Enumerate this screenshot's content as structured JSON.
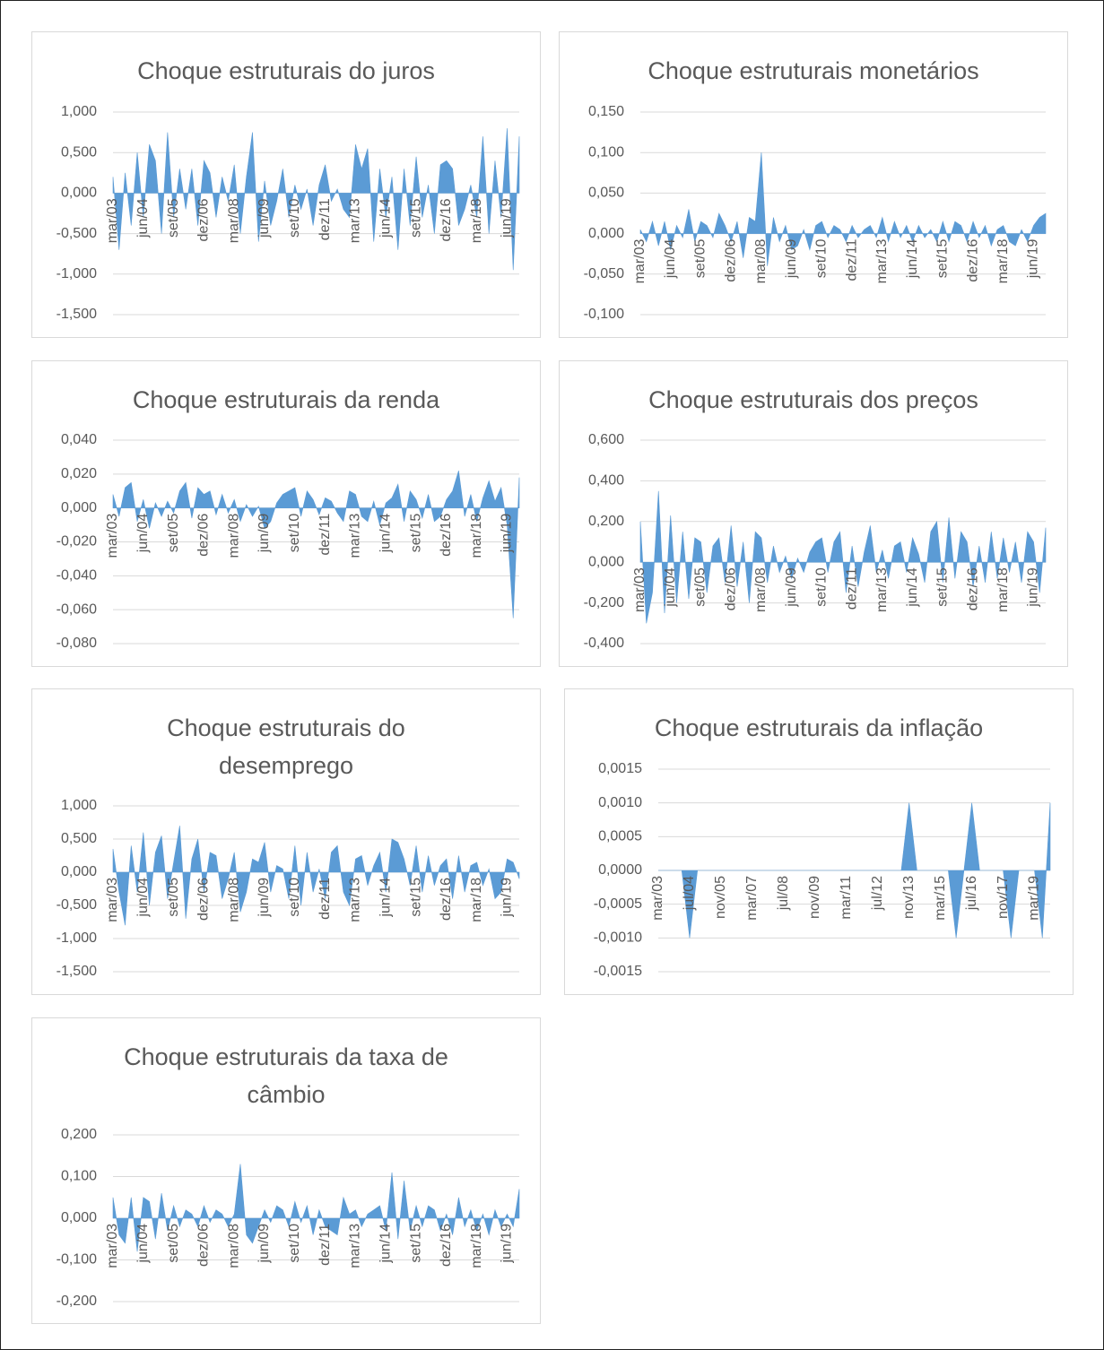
{
  "chart_data": [
    {
      "type": "area",
      "title": "Choque estruturais do juros",
      "color": "#5b9bd5",
      "grid": true,
      "categories": [
        "mar/03",
        null,
        null,
        null,
        null,
        "jun/04",
        null,
        null,
        null,
        null,
        "set/05",
        null,
        null,
        null,
        null,
        "dez/06",
        null,
        null,
        null,
        null,
        "mar/08",
        null,
        null,
        null,
        null,
        "jun/09",
        null,
        null,
        null,
        null,
        "set/10",
        null,
        null,
        null,
        null,
        "dez/11",
        null,
        null,
        null,
        null,
        "mar/13",
        null,
        null,
        null,
        null,
        "jun/14",
        null,
        null,
        null,
        null,
        "set/15",
        null,
        null,
        null,
        null,
        "dez/16",
        null,
        null,
        null,
        null,
        "mar/18",
        null,
        null,
        null,
        null,
        "jun/19",
        null,
        null
      ],
      "values": [
        0.2,
        -0.7,
        0.25,
        -0.4,
        0.5,
        -0.3,
        0.6,
        0.4,
        -0.5,
        0.75,
        -0.3,
        0.3,
        -0.2,
        0.3,
        -0.4,
        0.4,
        0.25,
        -0.3,
        0.2,
        -0.1,
        0.35,
        -0.5,
        0.2,
        0.75,
        -0.6,
        0.15,
        -0.4,
        -0.1,
        0.3,
        -0.3,
        0.1,
        -0.2,
        0.05,
        -0.4,
        0.1,
        0.35,
        -0.1,
        0.05,
        -0.2,
        -0.3,
        0.6,
        0.3,
        0.55,
        -0.6,
        0.3,
        -0.3,
        0.2,
        -0.7,
        0.3,
        -0.4,
        0.45,
        -0.3,
        0.1,
        -0.5,
        0.35,
        0.4,
        0.3,
        -0.4,
        -0.2,
        0.1,
        -0.3,
        0.7,
        -0.5,
        0.4,
        -0.3,
        0.8,
        -0.95,
        0.7
      ],
      "ylim": [
        -1.5,
        1
      ],
      "yticks": [
        {
          "value": -1.5,
          "label": "-1,500"
        },
        {
          "value": -1,
          "label": "-1,000"
        },
        {
          "value": -0.5,
          "label": "-0,500"
        },
        {
          "value": 0,
          "label": "0,000"
        },
        {
          "value": 0.5,
          "label": "0,500"
        },
        {
          "value": 1,
          "label": "1,000"
        }
      ]
    },
    {
      "type": "area",
      "title": "Choque estruturais monetários",
      "color": "#5b9bd5",
      "grid": true,
      "categories": [
        "mar/03",
        null,
        null,
        null,
        null,
        "jun/04",
        null,
        null,
        null,
        null,
        "set/05",
        null,
        null,
        null,
        null,
        "dez/06",
        null,
        null,
        null,
        null,
        "mar/08",
        null,
        null,
        null,
        null,
        "jun/09",
        null,
        null,
        null,
        null,
        "set/10",
        null,
        null,
        null,
        null,
        "dez/11",
        null,
        null,
        null,
        null,
        "mar/13",
        null,
        null,
        null,
        null,
        "jun/14",
        null,
        null,
        null,
        null,
        "set/15",
        null,
        null,
        null,
        null,
        "dez/16",
        null,
        null,
        null,
        null,
        "mar/18",
        null,
        null,
        null,
        null,
        "jun/19",
        null,
        null
      ],
      "values": [
        0.005,
        -0.01,
        0.015,
        -0.015,
        0.015,
        -0.02,
        0.01,
        -0.005,
        0.03,
        -0.01,
        0.015,
        0.01,
        -0.005,
        0.025,
        0.01,
        -0.01,
        0.015,
        -0.03,
        0.02,
        0.015,
        0.1,
        -0.04,
        0.02,
        -0.01,
        0.01,
        -0.02,
        -0.015,
        0.005,
        -0.02,
        0.01,
        0.015,
        -0.005,
        0.01,
        0.005,
        -0.01,
        0.01,
        -0.005,
        0.005,
        0.01,
        -0.005,
        0.02,
        -0.01,
        0.015,
        -0.005,
        0.01,
        -0.01,
        0.01,
        -0.005,
        0.005,
        -0.01,
        0.015,
        -0.01,
        0.015,
        0.01,
        -0.01,
        0.015,
        -0.005,
        0.01,
        -0.015,
        0.005,
        0.01,
        -0.01,
        -0.015,
        0.005,
        -0.01,
        0.01,
        0.02,
        0.025
      ],
      "ylim": [
        -0.1,
        0.15
      ],
      "yticks": [
        {
          "value": -0.1,
          "label": "-0,100"
        },
        {
          "value": -0.05,
          "label": "-0,050"
        },
        {
          "value": 0,
          "label": "0,000"
        },
        {
          "value": 0.05,
          "label": "0,050"
        },
        {
          "value": 0.1,
          "label": "0,100"
        },
        {
          "value": 0.15,
          "label": "0,150"
        }
      ]
    },
    {
      "type": "area",
      "title": "Choque estruturais da renda",
      "color": "#5b9bd5",
      "grid": true,
      "categories": [
        "mar/03",
        null,
        null,
        null,
        null,
        "jun/04",
        null,
        null,
        null,
        null,
        "set/05",
        null,
        null,
        null,
        null,
        "dez/06",
        null,
        null,
        null,
        null,
        "mar/08",
        null,
        null,
        null,
        null,
        "jun/09",
        null,
        null,
        null,
        null,
        "set/10",
        null,
        null,
        null,
        null,
        "dez/11",
        null,
        null,
        null,
        null,
        "mar/13",
        null,
        null,
        null,
        null,
        "jun/14",
        null,
        null,
        null,
        null,
        "set/15",
        null,
        null,
        null,
        null,
        "dez/16",
        null,
        null,
        null,
        null,
        "mar/18",
        null,
        null,
        null,
        null,
        "jun/19",
        null,
        null
      ],
      "values": [
        0.008,
        -0.005,
        0.012,
        0.015,
        -0.008,
        0.005,
        -0.012,
        0.003,
        -0.005,
        0.004,
        -0.003,
        0.01,
        0.015,
        -0.006,
        0.012,
        0.008,
        0.01,
        -0.004,
        0.008,
        -0.003,
        0.005,
        -0.008,
        0.002,
        -0.005,
        0.001,
        -0.012,
        -0.008,
        0.003,
        0.008,
        0.01,
        0.012,
        -0.005,
        0.01,
        0.005,
        -0.004,
        0.006,
        0.004,
        -0.003,
        -0.008,
        0.01,
        0.008,
        -0.005,
        -0.008,
        0.004,
        -0.01,
        0.003,
        0.006,
        0.014,
        -0.008,
        0.01,
        0.005,
        -0.006,
        0.008,
        -0.008,
        -0.005,
        0.005,
        0.01,
        0.022,
        -0.005,
        0.008,
        -0.008,
        0.006,
        0.016,
        0.004,
        0.012,
        -0.01,
        -0.065,
        0.018
      ],
      "ylim": [
        -0.08,
        0.04
      ],
      "yticks": [
        {
          "value": -0.08,
          "label": "-0,080"
        },
        {
          "value": -0.06,
          "label": "-0,060"
        },
        {
          "value": -0.04,
          "label": "-0,040"
        },
        {
          "value": -0.02,
          "label": "-0,020"
        },
        {
          "value": 0,
          "label": "0,000"
        },
        {
          "value": 0.02,
          "label": "0,020"
        },
        {
          "value": 0.04,
          "label": "0,040"
        }
      ]
    },
    {
      "type": "area",
      "title": "Choque estruturais dos preços",
      "color": "#5b9bd5",
      "grid": true,
      "categories": [
        "mar/03",
        null,
        null,
        null,
        null,
        "jun/04",
        null,
        null,
        null,
        null,
        "set/05",
        null,
        null,
        null,
        null,
        "dez/06",
        null,
        null,
        null,
        null,
        "mar/08",
        null,
        null,
        null,
        null,
        "jun/09",
        null,
        null,
        null,
        null,
        "set/10",
        null,
        null,
        null,
        null,
        "dez/11",
        null,
        null,
        null,
        null,
        "mar/13",
        null,
        null,
        null,
        null,
        "jun/14",
        null,
        null,
        null,
        null,
        "set/15",
        null,
        null,
        null,
        null,
        "dez/16",
        null,
        null,
        null,
        null,
        "mar/18",
        null,
        null,
        null,
        null,
        "jun/19",
        null,
        null
      ],
      "values": [
        0.2,
        -0.3,
        -0.15,
        0.35,
        -0.25,
        0.23,
        -0.2,
        0.15,
        -0.18,
        0.12,
        0.1,
        -0.15,
        0.08,
        0.12,
        -0.1,
        0.18,
        -0.12,
        0.1,
        -0.2,
        0.15,
        0.12,
        -0.1,
        0.08,
        -0.05,
        0.03,
        -0.08,
        0.02,
        -0.05,
        0.05,
        0.1,
        0.12,
        -0.05,
        0.1,
        0.15,
        -0.15,
        0.08,
        -0.12,
        0.05,
        0.18,
        -0.05,
        0.06,
        -0.08,
        0.08,
        0.1,
        -0.05,
        0.12,
        0.04,
        -0.1,
        0.15,
        0.2,
        -0.1,
        0.22,
        -0.08,
        0.15,
        0.1,
        -0.12,
        0.08,
        -0.1,
        0.15,
        -0.08,
        0.12,
        -0.05,
        0.1,
        -0.1,
        0.15,
        0.1,
        -0.15,
        0.17
      ],
      "ylim": [
        -0.4,
        0.6
      ],
      "yticks": [
        {
          "value": -0.4,
          "label": "-0,400"
        },
        {
          "value": -0.2,
          "label": "-0,200"
        },
        {
          "value": 0,
          "label": "0,000"
        },
        {
          "value": 0.2,
          "label": "0,200"
        },
        {
          "value": 0.4,
          "label": "0,400"
        },
        {
          "value": 0.6,
          "label": "0,600"
        }
      ]
    },
    {
      "type": "area",
      "title": "Choque estruturais do desemprego",
      "color": "#5b9bd5",
      "grid": true,
      "categories": [
        "mar/03",
        null,
        null,
        null,
        null,
        "jun/04",
        null,
        null,
        null,
        null,
        "set/05",
        null,
        null,
        null,
        null,
        "dez/06",
        null,
        null,
        null,
        null,
        "mar/08",
        null,
        null,
        null,
        null,
        "jun/09",
        null,
        null,
        null,
        null,
        "set/10",
        null,
        null,
        null,
        null,
        "dez/11",
        null,
        null,
        null,
        null,
        "mar/13",
        null,
        null,
        null,
        null,
        "jun/14",
        null,
        null,
        null,
        null,
        "set/15",
        null,
        null,
        null,
        null,
        "dez/16",
        null,
        null,
        null,
        null,
        "mar/18",
        null,
        null,
        null,
        null,
        "jun/19",
        null,
        null
      ],
      "values": [
        0.35,
        -0.3,
        -0.8,
        0.4,
        -0.3,
        0.6,
        -0.5,
        0.3,
        0.55,
        -0.4,
        0.15,
        0.7,
        -0.7,
        0.2,
        0.5,
        -0.3,
        0.3,
        0.25,
        -0.4,
        -0.1,
        0.3,
        -0.6,
        -0.3,
        0.2,
        0.15,
        0.45,
        -0.3,
        0.1,
        0.05,
        -0.4,
        0.4,
        -0.5,
        0.3,
        -0.3,
        0.05,
        -0.4,
        0.3,
        0.4,
        -0.3,
        -0.5,
        0.2,
        0.25,
        -0.2,
        0.1,
        0.3,
        -0.3,
        0.5,
        0.45,
        0.2,
        -0.2,
        0.4,
        -0.3,
        0.25,
        -0.2,
        0.1,
        0.2,
        -0.4,
        0.25,
        -0.3,
        0.1,
        0.15,
        -0.2,
        0.05,
        -0.4,
        -0.3,
        0.2,
        0.15,
        -0.1
      ],
      "ylim": [
        -1.5,
        1
      ],
      "yticks": [
        {
          "value": -1.5,
          "label": "-1,500"
        },
        {
          "value": -1,
          "label": "-1,000"
        },
        {
          "value": -0.5,
          "label": "-0,500"
        },
        {
          "value": 0,
          "label": "0,000"
        },
        {
          "value": 0.5,
          "label": "0,500"
        },
        {
          "value": 1,
          "label": "1,000"
        }
      ]
    },
    {
      "type": "area",
      "title": "Choque estruturais da inflação",
      "color": "#5b9bd5",
      "grid": true,
      "categories": [
        "mar/03",
        null,
        null,
        null,
        "jul/04",
        null,
        null,
        null,
        "nov/05",
        null,
        null,
        null,
        "mar/07",
        null,
        null,
        null,
        "jul/08",
        null,
        null,
        null,
        "nov/09",
        null,
        null,
        null,
        "mar/11",
        null,
        null,
        null,
        "jul/12",
        null,
        null,
        null,
        "nov/13",
        null,
        null,
        null,
        "mar/15",
        null,
        null,
        null,
        "jul/16",
        null,
        null,
        null,
        "nov/17",
        null,
        null,
        null,
        "mar/19",
        null,
        null
      ],
      "values": [
        0,
        0,
        0,
        0,
        -0.001,
        0,
        0,
        0,
        0,
        0,
        0,
        0,
        0,
        0,
        0,
        0,
        0,
        0,
        0,
        0,
        0,
        0,
        0,
        0,
        0,
        0,
        0,
        0,
        0,
        0,
        0,
        0,
        0.001,
        0,
        0,
        0,
        0,
        0,
        -0.001,
        0,
        0.001,
        0,
        0,
        0,
        0,
        -0.001,
        0,
        0,
        0,
        -0.001,
        0.001
      ],
      "ylim": [
        -0.0015,
        0.0015
      ],
      "yticks": [
        {
          "value": -0.0015,
          "label": "-0,0015"
        },
        {
          "value": -0.001,
          "label": "-0,0010"
        },
        {
          "value": -0.0005,
          "label": "-0,0005"
        },
        {
          "value": 0,
          "label": "0,0000"
        },
        {
          "value": 0.0005,
          "label": "0,0005"
        },
        {
          "value": 0.001,
          "label": "0,0010"
        },
        {
          "value": 0.0015,
          "label": "0,0015"
        }
      ]
    },
    {
      "type": "area",
      "title": "Choque estruturais da taxa de câmbio",
      "color": "#5b9bd5",
      "grid": true,
      "categories": [
        "mar/03",
        null,
        null,
        null,
        null,
        "jun/04",
        null,
        null,
        null,
        null,
        "set/05",
        null,
        null,
        null,
        null,
        "dez/06",
        null,
        null,
        null,
        null,
        "mar/08",
        null,
        null,
        null,
        null,
        "jun/09",
        null,
        null,
        null,
        null,
        "set/10",
        null,
        null,
        null,
        null,
        "dez/11",
        null,
        null,
        null,
        null,
        "mar/13",
        null,
        null,
        null,
        null,
        "jun/14",
        null,
        null,
        null,
        null,
        "set/15",
        null,
        null,
        null,
        null,
        "dez/16",
        null,
        null,
        null,
        null,
        "mar/18",
        null,
        null,
        null,
        null,
        "jun/19",
        null,
        null
      ],
      "values": [
        0.05,
        -0.04,
        -0.06,
        0.05,
        -0.08,
        0.05,
        0.04,
        -0.05,
        0.06,
        -0.03,
        0.03,
        -0.02,
        0.02,
        0.01,
        -0.02,
        0.03,
        -0.01,
        0.02,
        0.01,
        -0.02,
        0.01,
        0.13,
        -0.04,
        -0.06,
        -0.02,
        0.02,
        -0.01,
        0.03,
        0.02,
        -0.02,
        0.04,
        -0.01,
        0.03,
        -0.04,
        0.02,
        -0.02,
        -0.03,
        -0.04,
        0.05,
        0.01,
        0.02,
        -0.02,
        0.01,
        0.02,
        0.03,
        -0.03,
        0.11,
        -0.05,
        0.09,
        -0.03,
        0.03,
        -0.02,
        0.03,
        0.02,
        -0.03,
        0.01,
        -0.04,
        0.05,
        -0.02,
        0.02,
        -0.03,
        0.01,
        -0.04,
        0.02,
        -0.02,
        0.01,
        -0.02,
        0.07
      ],
      "ylim": [
        -0.2,
        0.2
      ],
      "yticks": [
        {
          "value": -0.2,
          "label": "-0,200"
        },
        {
          "value": -0.1,
          "label": "-0,100"
        },
        {
          "value": 0,
          "label": "0,000"
        },
        {
          "value": 0.1,
          "label": "0,100"
        },
        {
          "value": 0.2,
          "label": "0,200"
        }
      ]
    }
  ]
}
